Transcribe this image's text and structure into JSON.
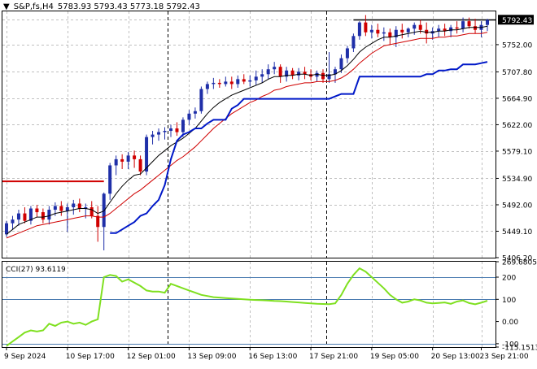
{
  "header": {
    "menu_arrow": "triangle-down-icon",
    "symbol": "S&P,fs,H4",
    "ohlc": "5783.93 5793.43 5773.18 5792.43"
  },
  "indicator_label": "CCI(27) 93.6119",
  "colors": {
    "bull_candle": "#1f2fa8",
    "bear_candle": "#d00000",
    "ma_fast": "#000000",
    "ma_slow": "#d00000",
    "trail_stop": "#0018c8",
    "cci_line": "#7fe020",
    "cci_levels": "#4a7bb0",
    "resistance": "#d00000",
    "price_line": "#000000",
    "grid": "#c0c0c0",
    "session_separator": "#000000"
  },
  "chart_data": [
    {
      "type": "candlestick",
      "title": "S&P,fs,H4",
      "ylim": [
        5406.2,
        5806.0
      ],
      "yticks": [
        "5792.43",
        "5752.00",
        "5707.80",
        "5664.90",
        "5622.00",
        "5579.10",
        "5534.90",
        "5492.00",
        "5449.10",
        "5406.20"
      ],
      "xticks": [
        "9 Sep 2024",
        "10 Sep 17:00",
        "12 Sep 01:00",
        "13 Sep 09:00",
        "16 Sep 13:00",
        "17 Sep 21:00",
        "19 Sep 05:00",
        "20 Sep 13:00",
        "23 Sep 21:00"
      ],
      "last_price": 5792.43,
      "resistance_level": 5530,
      "series_candles": [
        [
          5444,
          5466,
          5440,
          5462
        ],
        [
          5462,
          5474,
          5452,
          5468
        ],
        [
          5468,
          5484,
          5458,
          5478
        ],
        [
          5478,
          5488,
          5462,
          5466
        ],
        [
          5466,
          5490,
          5460,
          5486
        ],
        [
          5486,
          5492,
          5472,
          5480
        ],
        [
          5480,
          5486,
          5462,
          5468
        ],
        [
          5468,
          5490,
          5460,
          5484
        ],
        [
          5484,
          5496,
          5474,
          5490
        ],
        [
          5490,
          5498,
          5474,
          5482
        ],
        [
          5482,
          5494,
          5448,
          5488
        ],
        [
          5488,
          5500,
          5476,
          5494
        ],
        [
          5494,
          5502,
          5480,
          5486
        ],
        [
          5486,
          5494,
          5470,
          5488
        ],
        [
          5488,
          5498,
          5470,
          5474
        ],
        [
          5474,
          5490,
          5432,
          5456
        ],
        [
          5456,
          5512,
          5418,
          5510
        ],
        [
          5510,
          5560,
          5500,
          5556
        ],
        [
          5556,
          5572,
          5540,
          5566
        ],
        [
          5566,
          5574,
          5550,
          5562
        ],
        [
          5562,
          5578,
          5550,
          5572
        ],
        [
          5572,
          5580,
          5552,
          5566
        ],
        [
          5566,
          5572,
          5540,
          5546
        ],
        [
          5546,
          5606,
          5540,
          5602
        ],
        [
          5602,
          5612,
          5590,
          5606
        ],
        [
          5606,
          5616,
          5596,
          5610
        ],
        [
          5610,
          5618,
          5598,
          5612
        ],
        [
          5612,
          5622,
          5602,
          5616
        ],
        [
          5616,
          5626,
          5604,
          5610
        ],
        [
          5610,
          5634,
          5602,
          5630
        ],
        [
          5630,
          5646,
          5622,
          5640
        ],
        [
          5640,
          5650,
          5632,
          5644
        ],
        [
          5644,
          5684,
          5640,
          5680
        ],
        [
          5680,
          5692,
          5672,
          5688
        ],
        [
          5688,
          5698,
          5680,
          5690
        ],
        [
          5690,
          5696,
          5682,
          5688
        ],
        [
          5688,
          5700,
          5684,
          5692
        ],
        [
          5692,
          5700,
          5680,
          5688
        ],
        [
          5688,
          5702,
          5682,
          5696
        ],
        [
          5696,
          5704,
          5688,
          5692
        ],
        [
          5692,
          5702,
          5684,
          5694
        ],
        [
          5694,
          5710,
          5686,
          5700
        ],
        [
          5700,
          5712,
          5690,
          5704
        ],
        [
          5704,
          5720,
          5696,
          5712
        ],
        [
          5712,
          5724,
          5704,
          5716
        ],
        [
          5716,
          5720,
          5690,
          5700
        ],
        [
          5700,
          5716,
          5692,
          5710
        ],
        [
          5710,
          5714,
          5696,
          5702
        ],
        [
          5702,
          5714,
          5694,
          5708
        ],
        [
          5708,
          5716,
          5696,
          5704
        ],
        [
          5704,
          5712,
          5694,
          5700
        ],
        [
          5700,
          5710,
          5692,
          5706
        ],
        [
          5706,
          5712,
          5690,
          5696
        ],
        [
          5696,
          5740,
          5690,
          5704
        ],
        [
          5704,
          5716,
          5690,
          5712
        ],
        [
          5712,
          5736,
          5706,
          5730
        ],
        [
          5730,
          5750,
          5722,
          5746
        ],
        [
          5746,
          5770,
          5740,
          5766
        ],
        [
          5766,
          5790,
          5760,
          5788
        ],
        [
          5788,
          5800,
          5766,
          5772
        ],
        [
          5772,
          5784,
          5762,
          5776
        ],
        [
          5776,
          5786,
          5764,
          5770
        ],
        [
          5770,
          5780,
          5758,
          5772
        ],
        [
          5772,
          5778,
          5752,
          5764
        ],
        [
          5764,
          5782,
          5748,
          5776
        ],
        [
          5776,
          5786,
          5762,
          5772
        ],
        [
          5772,
          5780,
          5764,
          5778
        ],
        [
          5778,
          5788,
          5768,
          5784
        ],
        [
          5784,
          5792,
          5770,
          5776
        ],
        [
          5776,
          5788,
          5754,
          5770
        ],
        [
          5770,
          5780,
          5760,
          5774
        ],
        [
          5774,
          5784,
          5764,
          5778
        ],
        [
          5778,
          5786,
          5766,
          5774
        ],
        [
          5774,
          5784,
          5764,
          5780
        ],
        [
          5780,
          5790,
          5770,
          5778
        ],
        [
          5778,
          5796,
          5772,
          5790
        ],
        [
          5790,
          5796,
          5778,
          5782
        ],
        [
          5782,
          5794,
          5770,
          5776
        ],
        [
          5776,
          5790,
          5764,
          5784
        ],
        [
          5784,
          5794,
          5774,
          5792
        ]
      ],
      "ma_fast": [
        5444,
        5452,
        5460,
        5464,
        5468,
        5472,
        5472,
        5474,
        5478,
        5480,
        5482,
        5484,
        5486,
        5486,
        5484,
        5478,
        5482,
        5496,
        5510,
        5522,
        5532,
        5540,
        5542,
        5552,
        5562,
        5572,
        5580,
        5588,
        5594,
        5600,
        5608,
        5616,
        5628,
        5640,
        5650,
        5658,
        5664,
        5670,
        5674,
        5678,
        5682,
        5686,
        5690,
        5696,
        5700,
        5700,
        5702,
        5702,
        5704,
        5704,
        5702,
        5704,
        5702,
        5702,
        5704,
        5710,
        5718,
        5728,
        5740,
        5748,
        5754,
        5760,
        5764,
        5764,
        5766,
        5768,
        5770,
        5772,
        5774,
        5772,
        5772,
        5774,
        5774,
        5776,
        5776,
        5778,
        5780,
        5780,
        5780,
        5782
      ],
      "ma_slow": [
        5438,
        5442,
        5446,
        5450,
        5454,
        5458,
        5460,
        5462,
        5464,
        5466,
        5468,
        5470,
        5472,
        5474,
        5474,
        5472,
        5472,
        5478,
        5486,
        5494,
        5502,
        5510,
        5516,
        5524,
        5532,
        5540,
        5548,
        5556,
        5564,
        5570,
        5578,
        5586,
        5596,
        5606,
        5616,
        5624,
        5632,
        5640,
        5646,
        5652,
        5658,
        5662,
        5668,
        5672,
        5678,
        5680,
        5684,
        5686,
        5688,
        5690,
        5690,
        5692,
        5692,
        5692,
        5694,
        5698,
        5704,
        5712,
        5722,
        5730,
        5738,
        5744,
        5750,
        5752,
        5754,
        5756,
        5758,
        5760,
        5762,
        5762,
        5762,
        5764,
        5764,
        5766,
        5766,
        5768,
        5770,
        5770,
        5770,
        5772
      ],
      "trail_stop": [
        null,
        null,
        null,
        null,
        null,
        null,
        null,
        null,
        null,
        null,
        null,
        null,
        null,
        null,
        null,
        null,
        null,
        5446,
        5446,
        5452,
        5458,
        5464,
        5474,
        5478,
        5490,
        5500,
        5524,
        5566,
        5596,
        5606,
        5610,
        5616,
        5616,
        5624,
        5630,
        5630,
        5630,
        5648,
        5654,
        5664,
        5664,
        5664,
        5664,
        5664,
        5664,
        5664,
        5664,
        5664,
        5664,
        5664,
        5664,
        5664,
        5664,
        5664,
        5668,
        5672,
        5672,
        5672,
        5700,
        5700,
        5700,
        5700,
        5700,
        5700,
        5700,
        5700,
        5700,
        5700,
        5700,
        5704,
        5704,
        5710,
        5710,
        5712,
        5712,
        5720,
        5720,
        5720,
        5722,
        5724
      ]
    },
    {
      "type": "line",
      "title": "CCI(27) 93.6119",
      "ylim": [
        -115.1513,
        269.6805
      ],
      "yticks": [
        "269.6805",
        "200",
        "100",
        "0.00",
        "-100",
        "-115.1513"
      ],
      "levels": [
        200,
        100,
        -100
      ],
      "series": [
        {
          "name": "CCI(27)",
          "values": [
            -110,
            -90,
            -70,
            -50,
            -40,
            -45,
            -40,
            -10,
            -20,
            -5,
            0,
            -10,
            -5,
            -15,
            0,
            10,
            200,
            210,
            205,
            180,
            190,
            175,
            160,
            140,
            135,
            135,
            130,
            170,
            160,
            150,
            140,
            130,
            120,
            115,
            110,
            108,
            106,
            104,
            102,
            100,
            98,
            97,
            96,
            95,
            93,
            92,
            90,
            88,
            86,
            84,
            82,
            80,
            79,
            78,
            82,
            120,
            170,
            210,
            240,
            225,
            200,
            175,
            150,
            120,
            100,
            85,
            90,
            100,
            95,
            85,
            82,
            84,
            86,
            80,
            90,
            95,
            83,
            78,
            85,
            93.6
          ]
        }
      ]
    }
  ]
}
